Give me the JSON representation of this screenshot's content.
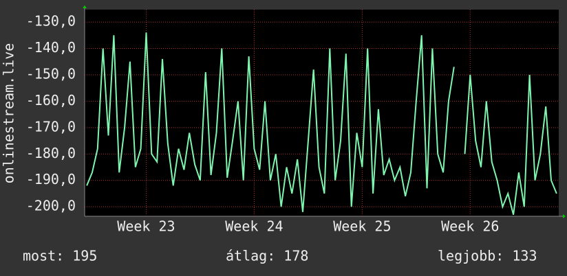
{
  "chart_data": {
    "type": "line",
    "y_label": "onlinestream.live",
    "x": [
      22.45,
      22.5,
      22.55,
      22.6,
      22.65,
      22.7,
      22.75,
      22.8,
      22.85,
      22.9,
      22.95,
      23.0,
      23.05,
      23.1,
      23.15,
      23.2,
      23.25,
      23.3,
      23.35,
      23.4,
      23.45,
      23.5,
      23.55,
      23.6,
      23.65,
      23.7,
      23.75,
      23.8,
      23.85,
      23.9,
      23.95,
      24.0,
      24.05,
      24.1,
      24.15,
      24.2,
      24.25,
      24.3,
      24.35,
      24.4,
      24.45,
      24.5,
      24.55,
      24.6,
      24.65,
      24.7,
      24.75,
      24.8,
      24.85,
      24.9,
      24.95,
      25.0,
      25.05,
      25.1,
      25.15,
      25.2,
      25.25,
      25.3,
      25.35,
      25.4,
      25.45,
      25.5,
      25.55,
      25.6,
      25.65,
      25.7,
      25.75,
      25.8,
      25.85,
      25.9,
      25.95,
      26.0,
      26.05,
      26.1,
      26.15,
      26.2,
      26.25,
      26.3,
      26.35,
      26.4,
      26.45,
      26.5,
      26.55,
      26.6,
      26.65,
      26.7,
      26.75,
      26.8
    ],
    "series": [
      {
        "name": "onlinestream.live",
        "color": "#7ff5b0",
        "values": [
          -192,
          -187,
          -178,
          -140,
          -173,
          -135,
          -187,
          -170,
          -145,
          -185,
          -178,
          -134,
          -180,
          -183,
          -144,
          -176,
          -192,
          -178,
          -186,
          -172,
          -184,
          -190,
          -149,
          -188,
          -172,
          -140,
          -189,
          -175,
          -160,
          -190,
          -143,
          -178,
          -186,
          -160,
          -190,
          -180,
          -200,
          -185,
          -195,
          -182,
          -202,
          -175,
          -148,
          -185,
          -195,
          -140,
          -190,
          -175,
          -142,
          -200,
          -172,
          -185,
          -140,
          -195,
          -163,
          -188,
          -182,
          -190,
          -185,
          -196,
          -187,
          -160,
          -135,
          -193,
          -140,
          -180,
          -187,
          -160,
          -147,
          null,
          -180,
          -150,
          -175,
          -185,
          -160,
          -183,
          -190,
          -200,
          -195,
          -203,
          -187,
          -200,
          -150,
          -190,
          -180,
          -162,
          -190,
          -195
        ]
      }
    ],
    "xlim": [
      22.43,
      26.82
    ],
    "xticks": [
      {
        "value": 23,
        "label": "Week 23"
      },
      {
        "value": 24,
        "label": "Week 24"
      },
      {
        "value": 25,
        "label": "Week 25"
      },
      {
        "value": 26,
        "label": "Week 26"
      }
    ],
    "ylim": [
      -203.6,
      -125.3
    ],
    "yticks": [
      {
        "value": -200,
        "label": "-200,0"
      },
      {
        "value": -190,
        "label": "-190,0"
      },
      {
        "value": -180,
        "label": "-180,0"
      },
      {
        "value": -170,
        "label": "-170,0"
      },
      {
        "value": -160,
        "label": "-160,0"
      },
      {
        "value": -150,
        "label": "-150,0"
      },
      {
        "value": -140,
        "label": "-140,0"
      },
      {
        "value": -130,
        "label": "-130,0"
      }
    ],
    "grid": true,
    "footer": [
      "most: 195",
      "átlag: 178",
      "legjobb: 133"
    ]
  }
}
